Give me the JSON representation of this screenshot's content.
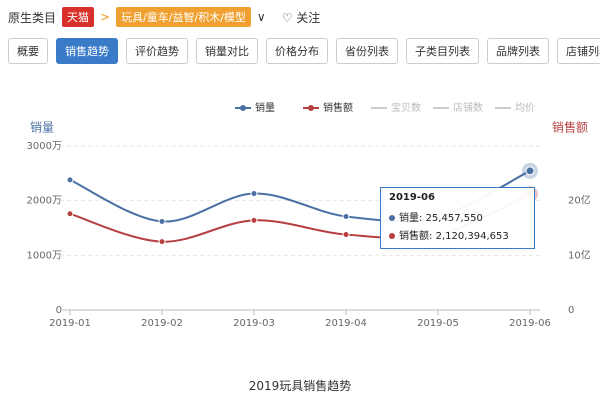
{
  "header": {
    "label": "原生类目",
    "platform": "天猫",
    "category": "玩具/童车/益智/积木/模型",
    "dropdown": "∨",
    "follow": "♡ 关注"
  },
  "tabs": [
    "概要",
    "销售趋势",
    "评价趋势",
    "销量对比",
    "价格分布",
    "省份列表",
    "子类目列表",
    "品牌列表",
    "店铺列表"
  ],
  "active_tab": 1,
  "caption": "2019玩具销售趋势",
  "chart_data": {
    "type": "line",
    "categories": [
      "2019-01",
      "2019-02",
      "2019-03",
      "2019-04",
      "2019-05",
      "2019-06"
    ],
    "y_label": "销量",
    "y2_label": "销售额",
    "series": [
      {
        "name": "销量",
        "color": "#4a6fa5",
        "values": [
          23800000,
          16200000,
          21300000,
          17100000,
          17100000,
          25457550
        ],
        "value_labels": [
          null,
          null,
          null,
          null,
          null,
          "25,457,550"
        ]
      },
      {
        "name": "销售额",
        "color": "#b5403f",
        "axis": "y2",
        "values": [
          1760000000,
          1250000000,
          1640000000,
          1380000000,
          1380000000,
          2120394653
        ],
        "value_labels": [
          null,
          null,
          null,
          null,
          null,
          "2,120,394,653"
        ]
      }
    ],
    "inactive_legend": [
      "宝贝数",
      "店铺数",
      "均价"
    ],
    "ylim": [
      0,
      30000000
    ],
    "yticks": [
      0,
      {
        "value": 10000000,
        "label": "1000万"
      },
      {
        "value": 20000000,
        "label": "2000万"
      },
      {
        "value": 30000000,
        "label": "3000万"
      }
    ],
    "y2lim": [
      0,
      3000000000
    ],
    "y2ticks": [
      0,
      {
        "value": 1000000000,
        "label": "10亿"
      },
      {
        "value": 2000000000,
        "label": "20亿"
      }
    ],
    "grid": true,
    "tooltip_index": 5
  }
}
